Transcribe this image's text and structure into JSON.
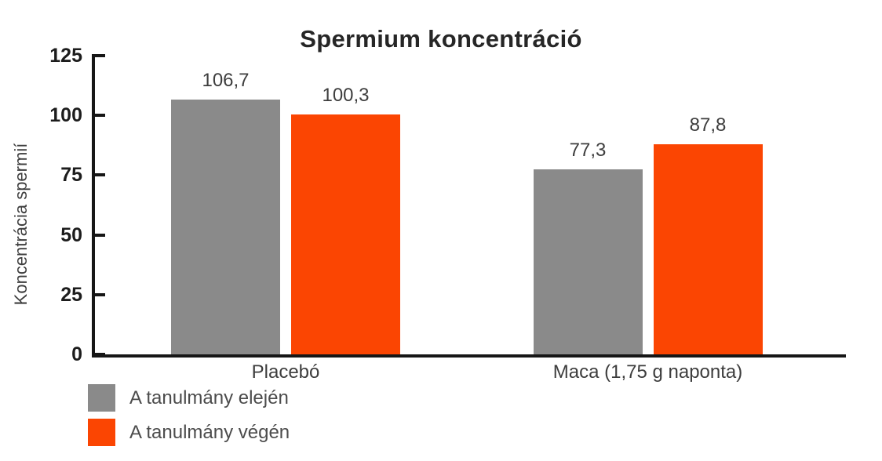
{
  "chart_data": {
    "type": "bar",
    "title": "Spermium koncentráció",
    "xlabel": "",
    "ylabel": "Koncentrácia spermií",
    "categories": [
      "Placebó",
      "Maca (1,75 g naponta)"
    ],
    "series": [
      {
        "name": "A tanulmány elején",
        "color": "#8a8a8a",
        "values": [
          106.7,
          77.3
        ],
        "labels": [
          "106,7",
          "77,3"
        ]
      },
      {
        "name": "A tanulmány végén",
        "color": "#fb4502",
        "values": [
          100.3,
          87.8
        ],
        "labels": [
          "100,3",
          "87,8"
        ]
      }
    ],
    "ylim": [
      0,
      125
    ],
    "yticks": [
      "0",
      "25",
      "50",
      "75",
      "100",
      "125"
    ],
    "grid": false,
    "legend_position": "bottom-left",
    "decimal_separator": ","
  }
}
